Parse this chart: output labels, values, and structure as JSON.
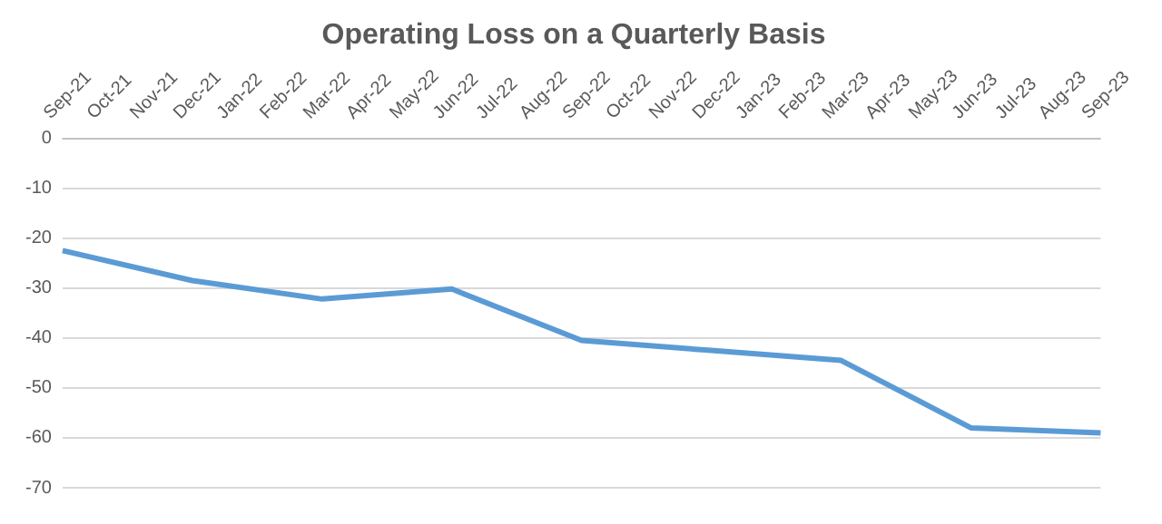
{
  "chart_data": {
    "type": "line",
    "title": "Operating Loss on a Quarterly Basis",
    "categories": [
      "Sep-21",
      "Oct-21",
      "Nov-21",
      "Dec-21",
      "Jan-22",
      "Feb-22",
      "Mar-22",
      "Apr-22",
      "May-22",
      "Jun-22",
      "Jul-22",
      "Aug-22",
      "Sep-22",
      "Oct-22",
      "Nov-22",
      "Dec-22",
      "Jan-23",
      "Feb-23",
      "Mar-23",
      "Apr-23",
      "May-23",
      "Jun-23",
      "Jul-23",
      "Aug-23",
      "Sep-23"
    ],
    "series": [
      {
        "color": "#5b9bd5",
        "values": [
          -22.5,
          null,
          null,
          -28.5,
          null,
          null,
          -32.2,
          null,
          null,
          -30.2,
          null,
          null,
          -40.5,
          null,
          null,
          -42.5,
          null,
          null,
          -44.5,
          null,
          null,
          -58,
          null,
          null,
          -59
        ]
      }
    ],
    "ylim": [
      -70,
      0
    ],
    "yticks": [
      0,
      -10,
      -20,
      -30,
      -40,
      -50,
      -60,
      -70
    ],
    "grid": "y",
    "legend": false,
    "marker": "none",
    "line_style": "solid"
  }
}
